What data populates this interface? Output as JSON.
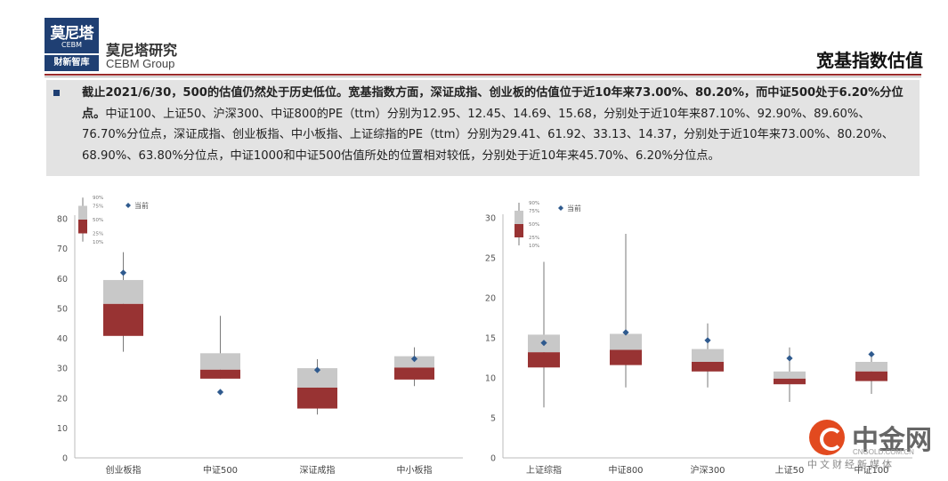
{
  "header": {
    "logo_cn": "莫尼塔",
    "logo_en": "CEBM",
    "logo_tag": "财新智库",
    "brand_cn": "莫尼塔研究",
    "brand_en": "CEBM Group",
    "page_title": "宽基指数估值"
  },
  "summary": {
    "bold_part": "截止2021/6/30，500的估值仍然处于历史低位。宽基指数方面，深证成指、创业板的估值位于近10年来73.00%、80.20%，而中证500处于6.20%分位点。",
    "normal_part": "中证100、上证50、沪深300、中证800的PE（ttm）分别为12.95、12.45、14.69、15.68，分别处于近10年来87.10%、92.90%、89.60%、76.70%分位点，深证成指、创业板指、中小板指、上证综指的PE（ttm）分别为29.41、61.92、33.13、14.37，分别处于近10年来73.00%、80.20%、68.90%、63.80%分位点，中证1000和中证500估值所处的位置相对较低，分别处于近10年来45.70%、6.20%分位点。"
  },
  "legend": {
    "current_label": "当前",
    "percentiles": [
      "90%",
      "75%",
      "50%",
      "25%",
      "10%"
    ]
  },
  "colors": {
    "upper_box": "#c8c8c8",
    "lower_box": "#983333",
    "marker": "#2f5a8e",
    "whisker": "#7a7a7a",
    "brand_navy": "#1f3f73",
    "rule_red": "#9a2b2b",
    "panel_gray": "#e3e3e3"
  },
  "chart_data": [
    {
      "type": "boxplot",
      "ylim": [
        0,
        80
      ],
      "yticks": [
        0,
        10,
        20,
        30,
        40,
        50,
        60,
        70,
        80
      ],
      "categories": [
        "创业板指",
        "中证500",
        "深证成指",
        "中小板指"
      ],
      "series": [
        {
          "name": "10%",
          "values": [
            35.5,
            26.5,
            14.5,
            24.0
          ]
        },
        {
          "name": "25%",
          "values": [
            40.8,
            26.5,
            16.5,
            26.2
          ]
        },
        {
          "name": "50%",
          "values": [
            51.5,
            29.5,
            23.5,
            30.2
          ]
        },
        {
          "name": "75%",
          "values": [
            59.5,
            35.0,
            30.0,
            34.0
          ]
        },
        {
          "name": "90%",
          "values": [
            68.8,
            47.5,
            33.0,
            37.0
          ]
        },
        {
          "name": "当前",
          "values": [
            61.92,
            22.0,
            29.41,
            33.13
          ]
        }
      ]
    },
    {
      "type": "boxplot",
      "ylim": [
        0,
        30
      ],
      "yticks": [
        0,
        5,
        10,
        15,
        20,
        25,
        30
      ],
      "categories": [
        "上证综指",
        "中证800",
        "沪深300",
        "上证50",
        "中证100"
      ],
      "series": [
        {
          "name": "10%",
          "values": [
            6.3,
            8.8,
            8.8,
            7.0,
            8.0
          ]
        },
        {
          "name": "25%",
          "values": [
            11.3,
            11.6,
            10.8,
            9.2,
            9.6
          ]
        },
        {
          "name": "50%",
          "values": [
            13.2,
            13.5,
            12.0,
            9.9,
            10.8
          ]
        },
        {
          "name": "75%",
          "values": [
            15.4,
            15.5,
            13.6,
            10.8,
            12.0
          ]
        },
        {
          "name": "90%",
          "values": [
            24.5,
            28.0,
            16.8,
            13.8,
            13.2
          ]
        },
        {
          "name": "当前",
          "values": [
            14.37,
            15.68,
            14.69,
            12.45,
            12.95
          ]
        }
      ]
    }
  ],
  "watermark": {
    "name": "中金网",
    "url": "CNGOLD.COM.CN",
    "subtitle": "中文财经新媒体"
  }
}
